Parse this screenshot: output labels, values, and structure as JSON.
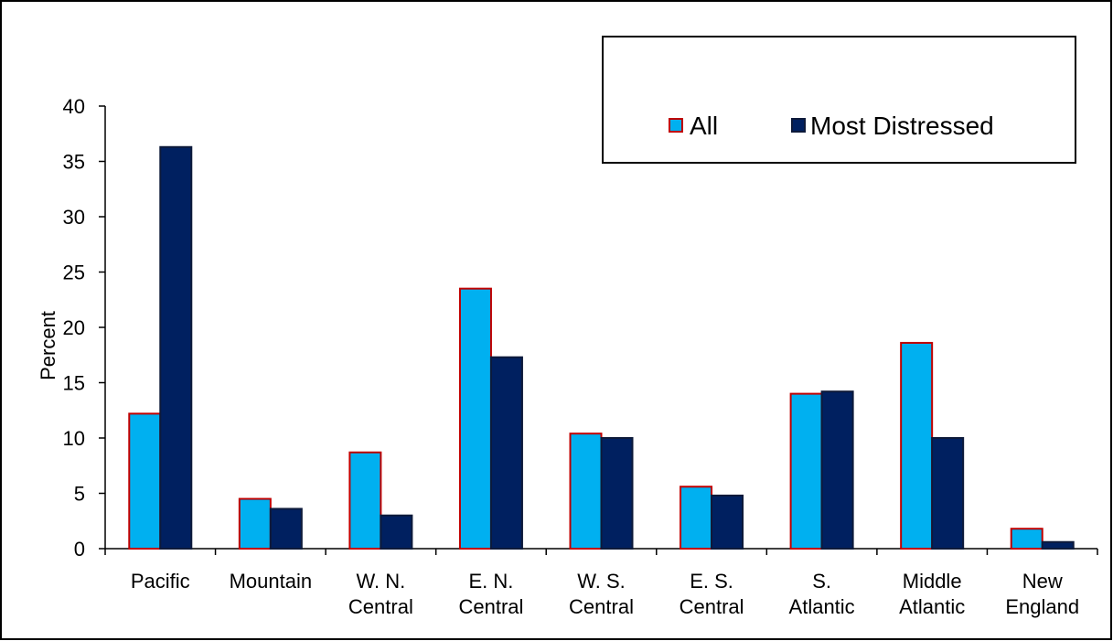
{
  "chart_data": {
    "type": "bar",
    "categories": [
      [
        "Pacific"
      ],
      [
        "Mountain"
      ],
      [
        "W. N.",
        "Central"
      ],
      [
        "E. N.",
        "Central"
      ],
      [
        "W. S.",
        "Central"
      ],
      [
        "E. S.",
        "Central"
      ],
      [
        "S.",
        "Atlantic"
      ],
      [
        "Middle",
        "Atlantic"
      ],
      [
        "New",
        "England"
      ]
    ],
    "series": [
      {
        "name": "All",
        "values": [
          12.2,
          4.5,
          8.7,
          23.5,
          10.4,
          5.6,
          14.0,
          18.6,
          1.8
        ],
        "color": "#00B0F0",
        "border": "#C00000"
      },
      {
        "name": "Most Distressed",
        "values": [
          36.3,
          3.6,
          3.0,
          17.3,
          10.0,
          4.8,
          14.2,
          10.0,
          0.6
        ],
        "color": "#002060",
        "border": "#0D1A3A"
      }
    ],
    "title": "",
    "xlabel": "",
    "ylabel": "Percent",
    "ylim": [
      0,
      40
    ],
    "yticks": [
      0,
      5,
      10,
      15,
      20,
      25,
      30,
      35,
      40
    ],
    "grid": false,
    "legend_position": "top-right"
  }
}
